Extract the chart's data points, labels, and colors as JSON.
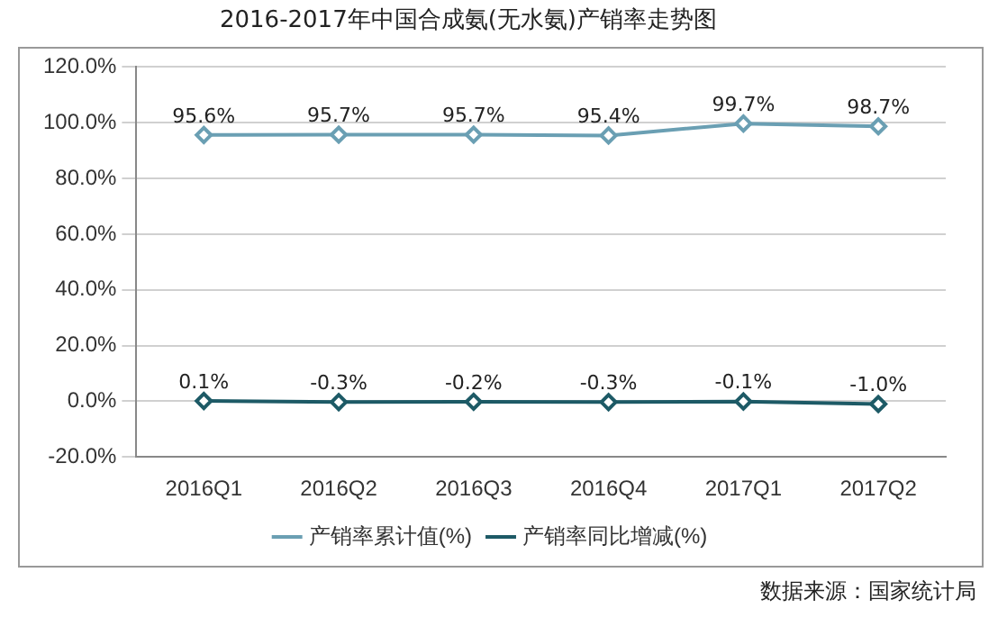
{
  "chart_data": {
    "type": "line",
    "title": "2016-2017年中国合成氨(无水氨)产销率走势图",
    "categories": [
      "2016Q1",
      "2016Q2",
      "2016Q3",
      "2016Q4",
      "2017Q1",
      "2017Q2"
    ],
    "series": [
      {
        "name": "产销率累计值(%)",
        "color": "#6a9fb3",
        "values": [
          95.6,
          95.7,
          95.7,
          95.4,
          99.7,
          98.7
        ],
        "value_labels": [
          "95.6%",
          "95.7%",
          "95.7%",
          "95.4%",
          "99.7%",
          "98.7%"
        ]
      },
      {
        "name": "产销率同比增减(%)",
        "color": "#1d5a66",
        "values": [
          0.1,
          -0.3,
          -0.2,
          -0.3,
          -0.1,
          -1.0
        ],
        "value_labels": [
          "0.1%",
          "-0.3%",
          "-0.2%",
          "-0.3%",
          "-0.1%",
          "-1.0%"
        ]
      }
    ],
    "ylim": [
      -20,
      120
    ],
    "yticks": [
      {
        "value": -20,
        "label": "-20.0%"
      },
      {
        "value": 0,
        "label": "0.0%"
      },
      {
        "value": 20,
        "label": "20.0%"
      },
      {
        "value": 40,
        "label": "40.0%"
      },
      {
        "value": 60,
        "label": "60.0%"
      },
      {
        "value": 80,
        "label": "80.0%"
      },
      {
        "value": 100,
        "label": "100.0%"
      },
      {
        "value": 120,
        "label": "120.0%"
      }
    ],
    "grid": "y",
    "legend": "bottom",
    "marker": "diamond",
    "line_style": "solid",
    "annotations": [
      "数据来源：国家统计局"
    ]
  }
}
